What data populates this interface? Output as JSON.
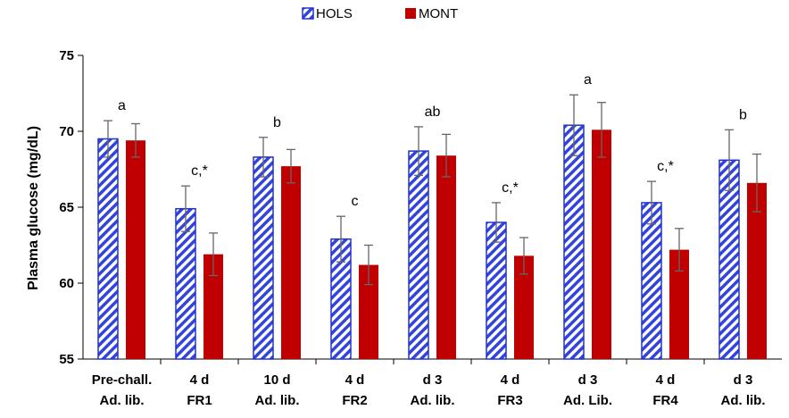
{
  "colors": {
    "hols_stripe": "#3344dd",
    "hols_outline": "#2233cc",
    "mont_fill": "#c00000",
    "error_bar": "#666666",
    "axis": "#000000"
  },
  "chart_data": {
    "type": "bar",
    "categories": [
      [
        "Pre-chall.",
        "Ad. lib."
      ],
      [
        "4 d",
        "FR1"
      ],
      [
        "10 d",
        "Ad. lib."
      ],
      [
        "4 d",
        "FR2"
      ],
      [
        "d 3",
        "Ad. lib."
      ],
      [
        "4 d",
        "FR3"
      ],
      [
        "d 3",
        "Ad. Lib."
      ],
      [
        "4 d",
        "FR4"
      ],
      [
        "d 3",
        "Ad. lib."
      ]
    ],
    "series": [
      {
        "name": "HOLS",
        "pattern": "diagonal-stripes",
        "values": [
          69.5,
          64.9,
          68.3,
          62.9,
          68.7,
          64.0,
          70.4,
          65.3,
          68.1
        ],
        "errors": [
          1.2,
          1.5,
          1.3,
          1.5,
          1.6,
          1.3,
          2.0,
          1.4,
          2.0
        ]
      },
      {
        "name": "MONT",
        "pattern": "solid",
        "values": [
          69.4,
          61.9,
          67.7,
          61.2,
          68.4,
          61.8,
          70.1,
          62.2,
          66.6
        ],
        "errors": [
          1.1,
          1.4,
          1.1,
          1.3,
          1.4,
          1.2,
          1.8,
          1.4,
          1.9
        ]
      }
    ],
    "annotations": [
      "a",
      "c,*",
      "b",
      "c",
      "ab",
      "c,*",
      "a",
      "c,*",
      "b"
    ],
    "ylabel": "Plasma glucose (mg/dL)",
    "xlabel": "",
    "ylim": [
      55,
      75
    ],
    "yticks": [
      55,
      60,
      65,
      70,
      75
    ],
    "grid": false,
    "legend_position": "top-center"
  }
}
